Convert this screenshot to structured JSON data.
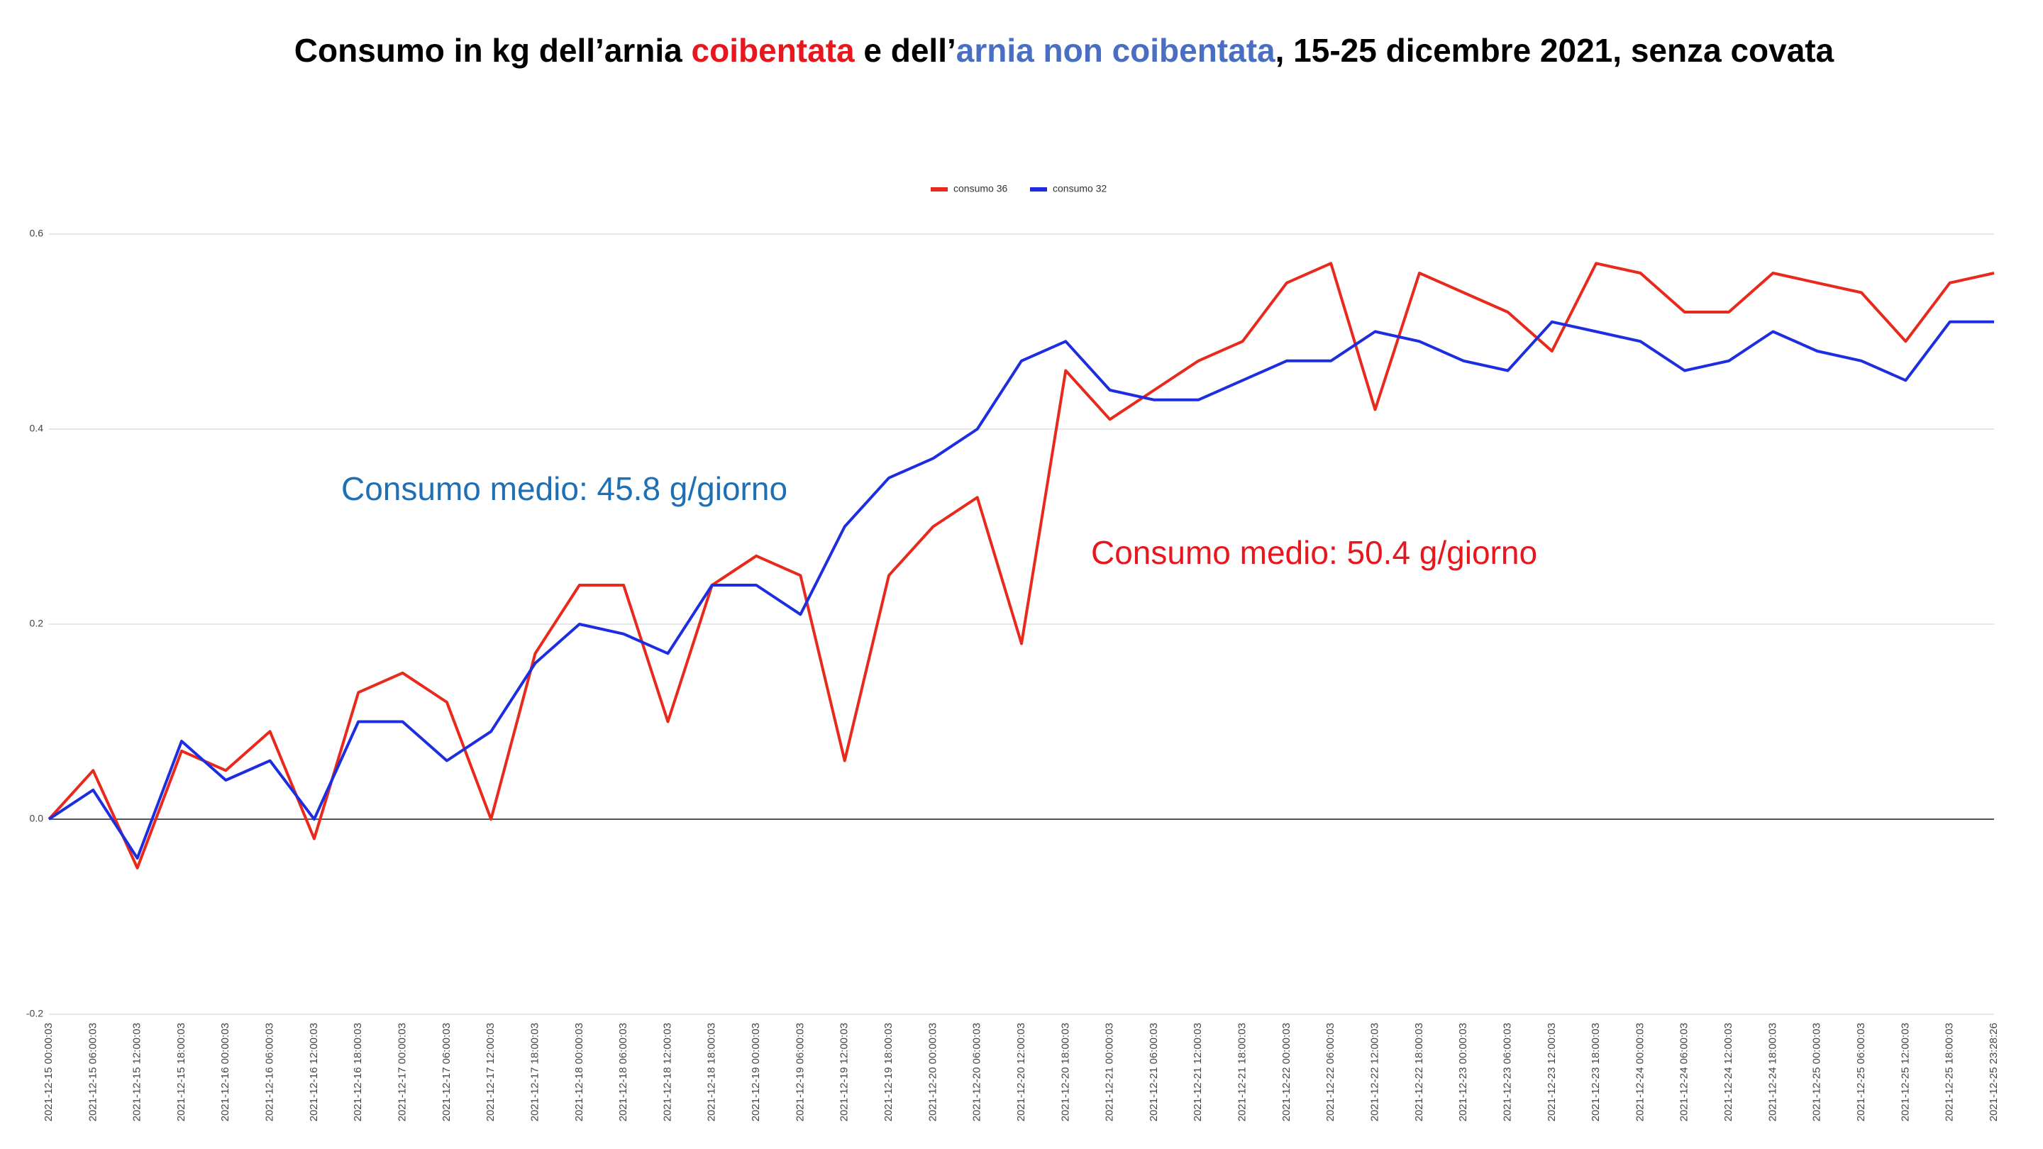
{
  "chart_data": {
    "type": "line",
    "title_parts": [
      "Consumo in kg dell’arnia ",
      "coibentata",
      " e dell’",
      "arnia non coibentata",
      ", 15-25 dicembre 2021, senza covata"
    ],
    "title_colors": [
      "#000000",
      "#e8171e",
      "#000000",
      "#4a6fc2",
      "#000000"
    ],
    "annotations": [
      {
        "text": "Consumo medio: 45.8 g/giorno",
        "color": "#1f6fb5"
      },
      {
        "text": "Consumo medio: 50.4 g/giorno",
        "color": "#e8171e"
      }
    ],
    "categories": [
      "2021-12-15 00:00:03",
      "2021-12-15 06:00:03",
      "2021-12-15 12:00:03",
      "2021-12-15 18:00:03",
      "2021-12-16 00:00:03",
      "2021-12-16 06:00:03",
      "2021-12-16 12:00:03",
      "2021-12-16 18:00:03",
      "2021-12-17 00:00:03",
      "2021-12-17 06:00:03",
      "2021-12-17 12:00:03",
      "2021-12-17 18:00:03",
      "2021-12-18 00:00:03",
      "2021-12-18 06:00:03",
      "2021-12-18 12:00:03",
      "2021-12-18 18:00:03",
      "2021-12-19 00:00:03",
      "2021-12-19 06:00:03",
      "2021-12-19 12:00:03",
      "2021-12-19 18:00:03",
      "2021-12-20 00:00:03",
      "2021-12-20 06:00:03",
      "2021-12-20 12:00:03",
      "2021-12-20 18:00:03",
      "2021-12-21 00:00:03",
      "2021-12-21 06:00:03",
      "2021-12-21 12:00:03",
      "2021-12-21 18:00:03",
      "2021-12-22 00:00:03",
      "2021-12-22 06:00:03",
      "2021-12-22 12:00:03",
      "2021-12-22 18:00:03",
      "2021-12-23 00:00:03",
      "2021-12-23 06:00:03",
      "2021-12-23 12:00:03",
      "2021-12-23 18:00:03",
      "2021-12-24 00:00:03",
      "2021-12-24 06:00:03",
      "2021-12-24 12:00:03",
      "2021-12-24 18:00:03",
      "2021-12-25 00:00:03",
      "2021-12-25 06:00:03",
      "2021-12-25 12:00:03",
      "2021-12-25 18:00:03",
      "2021-12-25 23:28:26"
    ],
    "series": [
      {
        "name": "consumo 36",
        "color": "#e8291c",
        "values": [
          0.0,
          0.05,
          -0.05,
          0.07,
          0.05,
          0.09,
          -0.02,
          0.13,
          0.15,
          0.12,
          0.0,
          0.17,
          0.24,
          0.24,
          0.1,
          0.24,
          0.27,
          0.25,
          0.06,
          0.25,
          0.3,
          0.33,
          0.18,
          0.46,
          0.41,
          0.44,
          0.47,
          0.49,
          0.55,
          0.57,
          0.42,
          0.56,
          0.54,
          0.52,
          0.48,
          0.57,
          0.56,
          0.52,
          0.52,
          0.56,
          0.55,
          0.54,
          0.49,
          0.55,
          0.56
        ]
      },
      {
        "name": "consumo 32",
        "color": "#1c2ee0",
        "values": [
          0.0,
          0.03,
          -0.04,
          0.08,
          0.04,
          0.06,
          0.0,
          0.1,
          0.1,
          0.06,
          0.09,
          0.16,
          0.2,
          0.19,
          0.17,
          0.24,
          0.24,
          0.21,
          0.3,
          0.35,
          0.37,
          0.4,
          0.47,
          0.49,
          0.44,
          0.43,
          0.43,
          0.45,
          0.47,
          0.47,
          0.5,
          0.49,
          0.47,
          0.46,
          0.51,
          0.5,
          0.49,
          0.46,
          0.47,
          0.5,
          0.48,
          0.47,
          0.45,
          0.51,
          0.51
        ]
      }
    ],
    "ylim": [
      -0.2,
      0.6
    ],
    "yticks": [
      -0.2,
      {
        "value": 0,
        "label": "0.0"
      },
      0.2,
      0.4,
      0.6
    ],
    "grid": true,
    "legend": "top"
  }
}
